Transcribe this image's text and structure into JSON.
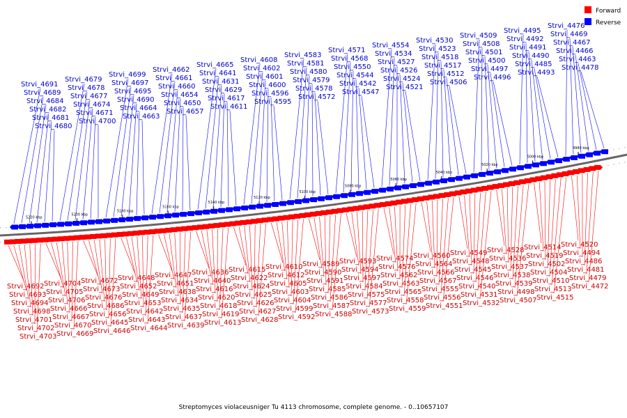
{
  "caption": "Streptomyces violaceusniger Tu 4113 chromosome, complete genome. - 0..10657107",
  "legend": {
    "forward": {
      "label": "Forward",
      "color": "#ff0000"
    },
    "reverse": {
      "label": "Reverse",
      "color": "#0000ff"
    }
  },
  "colors": {
    "forward_label": "#cc0000",
    "reverse_label": "#0000cc",
    "backbone": "#666666"
  },
  "ticks": [
    "5220 kbp",
    "5200 kbp",
    "5180 kbp",
    "5160 kbp",
    "5140 kbp",
    "5120 kbp",
    "5100 kbp",
    "5080 kbp",
    "5060 kbp",
    "5040 kbp",
    "5020 kbp",
    "5000 kbp",
    "4980 kbp"
  ],
  "reverse_genes": [
    {
      "label": "Strvi_4691"
    },
    {
      "label": "Strvi_4689"
    },
    {
      "label": "Strvi_4684"
    },
    {
      "label": "Strvi_4682"
    },
    {
      "label": "Strvi_4681"
    },
    {
      "label": "Strvi_4680"
    },
    {
      "label": "Strvi_4679"
    },
    {
      "label": "Strvi_4678"
    },
    {
      "label": "Strvi_4677"
    },
    {
      "label": "Strvi_4674"
    },
    {
      "label": "Strvi_4671"
    },
    {
      "label": "Strvi_4700"
    },
    {
      "label": "Strvi_4699"
    },
    {
      "label": "Strvi_4697"
    },
    {
      "label": "Strvi_4695"
    },
    {
      "label": "Strvi_4690"
    },
    {
      "label": "Strvi_4664"
    },
    {
      "label": "Strvi_4663"
    },
    {
      "label": "Strvi_4662"
    },
    {
      "label": "Strvi_4661"
    },
    {
      "label": "Strvi_4660"
    },
    {
      "label": "Strvi_4654"
    },
    {
      "label": "Strvi_4650"
    },
    {
      "label": "Strvi_4657"
    },
    {
      "label": "Strvi_4665"
    },
    {
      "label": "Strvi_4641"
    },
    {
      "label": "Strvi_4631"
    },
    {
      "label": "Strvi_4629"
    },
    {
      "label": "Strvi_4617"
    },
    {
      "label": "Strvi_4611"
    },
    {
      "label": "Strvi_4608"
    },
    {
      "label": "Strvi_4602"
    },
    {
      "label": "Strvi_4601"
    },
    {
      "label": "Strvi_4600"
    },
    {
      "label": "Strvi_4596"
    },
    {
      "label": "Strvi_4595"
    },
    {
      "label": "Strvi_4583"
    },
    {
      "label": "Strvi_4581"
    },
    {
      "label": "Strvi_4580"
    },
    {
      "label": "Strvi_4579"
    },
    {
      "label": "Strvi_4578"
    },
    {
      "label": "Strvi_4572"
    },
    {
      "label": "Strvi_4571"
    },
    {
      "label": "Strvi_4568"
    },
    {
      "label": "Strvi_4550"
    },
    {
      "label": "Strvi_4544"
    },
    {
      "label": "Strvi_4542"
    },
    {
      "label": "Strvi_4547"
    },
    {
      "label": "Strvi_4554"
    },
    {
      "label": "Strvi_4534"
    },
    {
      "label": "Strvi_4527"
    },
    {
      "label": "Strvi_4526"
    },
    {
      "label": "Strvi_4524"
    },
    {
      "label": "Strvi_4521"
    },
    {
      "label": "Strvi_4530"
    },
    {
      "label": "Strvi_4523"
    },
    {
      "label": "Strvi_4518"
    },
    {
      "label": "Strvi_4517"
    },
    {
      "label": "Strvi_4512"
    },
    {
      "label": "Strvi_4506"
    },
    {
      "label": "Strvi_4509"
    },
    {
      "label": "Strvi_4508"
    },
    {
      "label": "Strvi_4501"
    },
    {
      "label": "Strvi_4500"
    },
    {
      "label": "Strvi_4497"
    },
    {
      "label": "Strvi_4496"
    },
    {
      "label": "Strvi_4495"
    },
    {
      "label": "Strvi_4492"
    },
    {
      "label": "Strvi_4491"
    },
    {
      "label": "Strvi_4490"
    },
    {
      "label": "Strvi_4485"
    },
    {
      "label": "Strvi_4493"
    },
    {
      "label": "Strvi_4476"
    },
    {
      "label": "Strvi_4469"
    },
    {
      "label": "Strvi_4467"
    },
    {
      "label": "Strvi_4466"
    },
    {
      "label": "Strvi_4463"
    },
    {
      "label": "Strvi_4478"
    }
  ],
  "forward_genes": [
    {
      "label": "Strvi_4692"
    },
    {
      "label": "Strvi_4693"
    },
    {
      "label": "Strvi_4694"
    },
    {
      "label": "Strvi_4698"
    },
    {
      "label": "Strvi_4701"
    },
    {
      "label": "Strvi_4702"
    },
    {
      "label": "Strvi_4703"
    },
    {
      "label": "Strvi_4704"
    },
    {
      "label": "Strvi_4705"
    },
    {
      "label": "Strvi_4706"
    },
    {
      "label": "Strvi_4666"
    },
    {
      "label": "Strvi_4667"
    },
    {
      "label": "Strvi_4670"
    },
    {
      "label": "Strvi_4669"
    },
    {
      "label": "Strvi_4672"
    },
    {
      "label": "Strvi_4673"
    },
    {
      "label": "Strvi_4676"
    },
    {
      "label": "Strvi_4686"
    },
    {
      "label": "Strvi_4656"
    },
    {
      "label": "Strvi_4645"
    },
    {
      "label": "Strvi_4646"
    },
    {
      "label": "Strvi_4648"
    },
    {
      "label": "Strvi_4652"
    },
    {
      "label": "Strvi_4649"
    },
    {
      "label": "Strvi_4653"
    },
    {
      "label": "Strvi_4642"
    },
    {
      "label": "Strvi_4643"
    },
    {
      "label": "Strvi_4644"
    },
    {
      "label": "Strvi_4647"
    },
    {
      "label": "Strvi_4651"
    },
    {
      "label": "Strvi_4638"
    },
    {
      "label": "Strvi_4634"
    },
    {
      "label": "Strvi_4635"
    },
    {
      "label": "Strvi_4637"
    },
    {
      "label": "Strvi_4639"
    },
    {
      "label": "Strvi_4636"
    },
    {
      "label": "Strvi_4640"
    },
    {
      "label": "Strvi_4616"
    },
    {
      "label": "Strvi_4620"
    },
    {
      "label": "Strvi_4618"
    },
    {
      "label": "Strvi_4619"
    },
    {
      "label": "Strvi_4613"
    },
    {
      "label": "Strvi_4615"
    },
    {
      "label": "Strvi_4622"
    },
    {
      "label": "Strvi_4624"
    },
    {
      "label": "Strvi_4625"
    },
    {
      "label": "Strvi_4626"
    },
    {
      "label": "Strvi_4627"
    },
    {
      "label": "Strvi_4628"
    },
    {
      "label": "Strvi_4610"
    },
    {
      "label": "Strvi_4612"
    },
    {
      "label": "Strvi_4605"
    },
    {
      "label": "Strvi_4603"
    },
    {
      "label": "Strvi_4604"
    },
    {
      "label": "Strvi_4599"
    },
    {
      "label": "Strvi_4592"
    },
    {
      "label": "Strvi_4589"
    },
    {
      "label": "Strvi_4590"
    },
    {
      "label": "Strvi_4591"
    },
    {
      "label": "Strvi_4585"
    },
    {
      "label": "Strvi_4586"
    },
    {
      "label": "Strvi_4587"
    },
    {
      "label": "Strvi_4588"
    },
    {
      "label": "Strvi_4593"
    },
    {
      "label": "Strvi_4594"
    },
    {
      "label": "Strvi_4597"
    },
    {
      "label": "Strvi_4584"
    },
    {
      "label": "Strvi_4575"
    },
    {
      "label": "Strvi_4577"
    },
    {
      "label": "Strvi_4573"
    },
    {
      "label": "Strvi_4574"
    },
    {
      "label": "Strvi_4576"
    },
    {
      "label": "Strvi_4562"
    },
    {
      "label": "Strvi_4563"
    },
    {
      "label": "Strvi_4565"
    },
    {
      "label": "Strvi_4558"
    },
    {
      "label": "Strvi_4559"
    },
    {
      "label": "Strvi_4560"
    },
    {
      "label": "Strvi_4564"
    },
    {
      "label": "Strvi_4566"
    },
    {
      "label": "Strvi_4567"
    },
    {
      "label": "Strvi_4555"
    },
    {
      "label": "Strvi_4556"
    },
    {
      "label": "Strvi_4551"
    },
    {
      "label": "Strvi_4549"
    },
    {
      "label": "Strvi_4548"
    },
    {
      "label": "Strvi_4545"
    },
    {
      "label": "Strvi_4546"
    },
    {
      "label": "Strvi_4540"
    },
    {
      "label": "Strvi_4531"
    },
    {
      "label": "Strvi_4532"
    },
    {
      "label": "Strvi_4528"
    },
    {
      "label": "Strvi_4536"
    },
    {
      "label": "Strvi_4537"
    },
    {
      "label": "Strvi_4538"
    },
    {
      "label": "Strvi_4539"
    },
    {
      "label": "Strvi_4498"
    },
    {
      "label": "Strvi_4507"
    },
    {
      "label": "Strvi_4514"
    },
    {
      "label": "Strvi_4519"
    },
    {
      "label": "Strvi_4502"
    },
    {
      "label": "Strvi_4504"
    },
    {
      "label": "Strvi_4510"
    },
    {
      "label": "Strvi_4513"
    },
    {
      "label": "Strvi_4515"
    },
    {
      "label": "Strvi_4520"
    },
    {
      "label": "Strvi_4494"
    },
    {
      "label": "Strvi_4486"
    },
    {
      "label": "Strvi_4481"
    },
    {
      "label": "Strvi_4479"
    },
    {
      "label": "Strvi_4472"
    }
  ]
}
